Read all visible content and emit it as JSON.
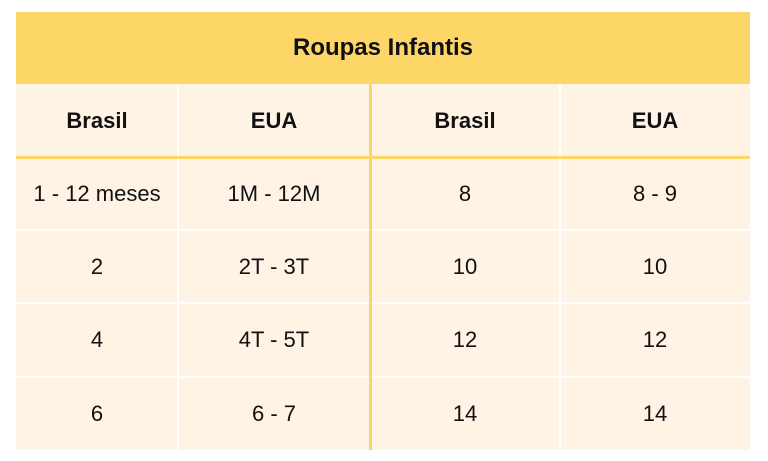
{
  "table": {
    "title": "Roupas Infantis",
    "header": [
      "Brasil",
      "EUA",
      "Brasil",
      "EUA"
    ],
    "rows": [
      [
        "1 - 12 meses",
        "1M - 12M",
        "8",
        "8 - 9"
      ],
      [
        "2",
        "2T - 3T",
        "10",
        "10"
      ],
      [
        "4",
        "4T - 5T",
        "12",
        "12"
      ],
      [
        "6",
        "6 - 7",
        "14",
        "14"
      ]
    ]
  }
}
